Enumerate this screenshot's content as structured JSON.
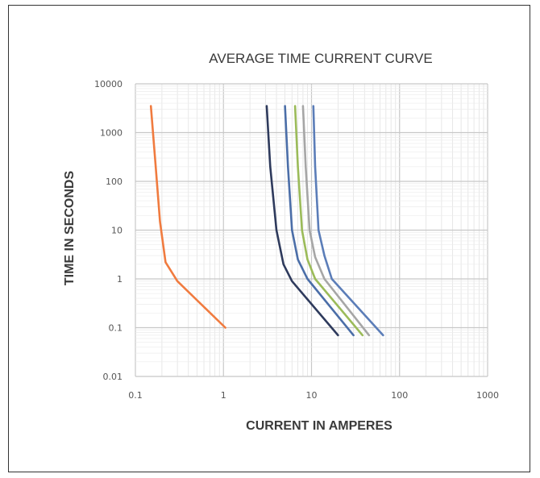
{
  "chart_data": {
    "type": "line",
    "title": "AVERAGE TIME CURRENT CURVE",
    "xlabel": "CURRENT IN AMPERES",
    "ylabel": "TIME IN SECONDS",
    "x_scale": "log",
    "y_scale": "log",
    "xlim": [
      0.1,
      1000
    ],
    "ylim": [
      0.01,
      10000
    ],
    "x_ticks": [
      "0.1",
      "1",
      "10",
      "100",
      "1000"
    ],
    "y_ticks": [
      "0.01",
      "0.1",
      "1",
      "10",
      "100",
      "1000",
      "10000"
    ],
    "grid": true,
    "legend": "none",
    "series": [
      {
        "color": "#f07b3f",
        "points": [
          [
            0.15,
            3500
          ],
          [
            0.17,
            200
          ],
          [
            0.19,
            15
          ],
          [
            0.22,
            2.2
          ],
          [
            0.3,
            0.9
          ],
          [
            1.05,
            0.1
          ]
        ]
      },
      {
        "color": "#2e3a5c",
        "points": [
          [
            3.1,
            3500
          ],
          [
            3.4,
            200
          ],
          [
            4.0,
            10
          ],
          [
            4.8,
            2.0
          ],
          [
            6.0,
            0.9
          ],
          [
            20,
            0.07
          ]
        ]
      },
      {
        "color": "#4b6ea8",
        "points": [
          [
            5.0,
            3500
          ],
          [
            5.4,
            200
          ],
          [
            6.0,
            10
          ],
          [
            7.0,
            2.5
          ],
          [
            9.0,
            1.0
          ],
          [
            30,
            0.07
          ]
        ]
      },
      {
        "color": "#9bbb59",
        "points": [
          [
            6.5,
            3500
          ],
          [
            7.0,
            200
          ],
          [
            7.8,
            10
          ],
          [
            9.0,
            2.5
          ],
          [
            11,
            1.0
          ],
          [
            38,
            0.07
          ]
        ]
      },
      {
        "color": "#a6a6a6",
        "points": [
          [
            8.0,
            3500
          ],
          [
            8.6,
            200
          ],
          [
            9.5,
            10
          ],
          [
            11,
            2.8
          ],
          [
            14,
            1.0
          ],
          [
            45,
            0.07
          ]
        ]
      },
      {
        "color": "#5b7db8",
        "points": [
          [
            10.5,
            3500
          ],
          [
            11,
            200
          ],
          [
            12,
            10
          ],
          [
            14,
            3.0
          ],
          [
            17,
            1.0
          ],
          [
            65,
            0.07
          ]
        ]
      }
    ]
  }
}
